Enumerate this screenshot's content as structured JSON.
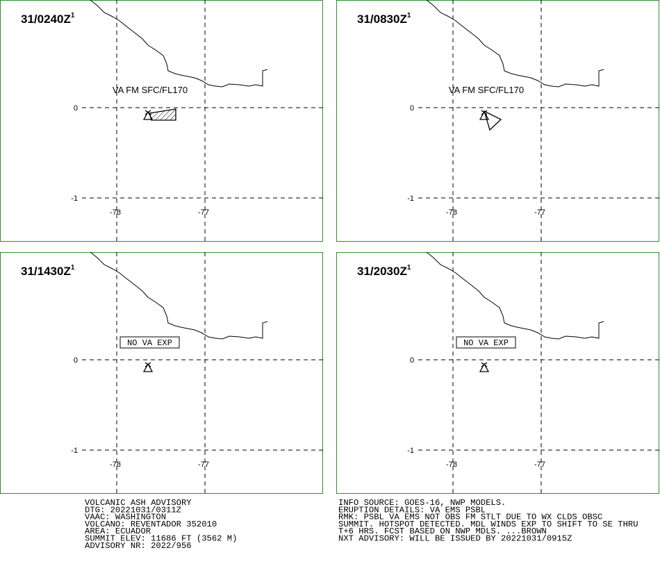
{
  "panels": [
    {
      "time": "31/0240Z",
      "superscript": "1",
      "label": "VA FM SFC/FL170",
      "lat_labels": [
        "0",
        "-1"
      ],
      "lon_labels": [
        "-78",
        "-77"
      ]
    },
    {
      "time": "31/0830Z",
      "superscript": "1",
      "label": "VA FM SFC/FL170",
      "lat_labels": [
        "0",
        "-1"
      ],
      "lon_labels": [
        "-78",
        "-77"
      ]
    },
    {
      "time": "31/1430Z",
      "superscript": "1",
      "label": "NO VA EXP",
      "lat_labels": [
        "0",
        "-1"
      ],
      "lon_labels": [
        "-78",
        "-77"
      ]
    },
    {
      "time": "31/2030Z",
      "superscript": "1",
      "label": "NO VA EXP",
      "lat_labels": [
        "0",
        "-1"
      ],
      "lon_labels": [
        "-78",
        "-77"
      ]
    }
  ],
  "advisory_left": [
    "VOLCANIC ASH ADVISORY",
    "DTG: 20221031/0311Z",
    "VAAC: WASHINGTON",
    "VOLCANO: REVENTADOR 352010",
    "AREA: ECUADOR",
    "SUMMIT ELEV: 11686 FT (3562 M)",
    "ADVISORY NR: 2022/956"
  ],
  "advisory_right": [
    "INFO SOURCE: GOES-16, NWP MODELS.",
    "ERUPTION DETAILS: VA EMS PSBL",
    "RMK: PSBL VA EMS NOT OBS FM STLT DUE TO WX CLDS OBSC",
    "SUMMIT. HOTSPOT DETECTED. MDL WINDS EXP TO SHIFT TO SE THRU",
    "T+6 HRS. FCST BASED ON NWP MDLS. ...BROWN",
    "NXT ADVISORY: WILL BE ISSUED BY 20221031/0915Z"
  ]
}
